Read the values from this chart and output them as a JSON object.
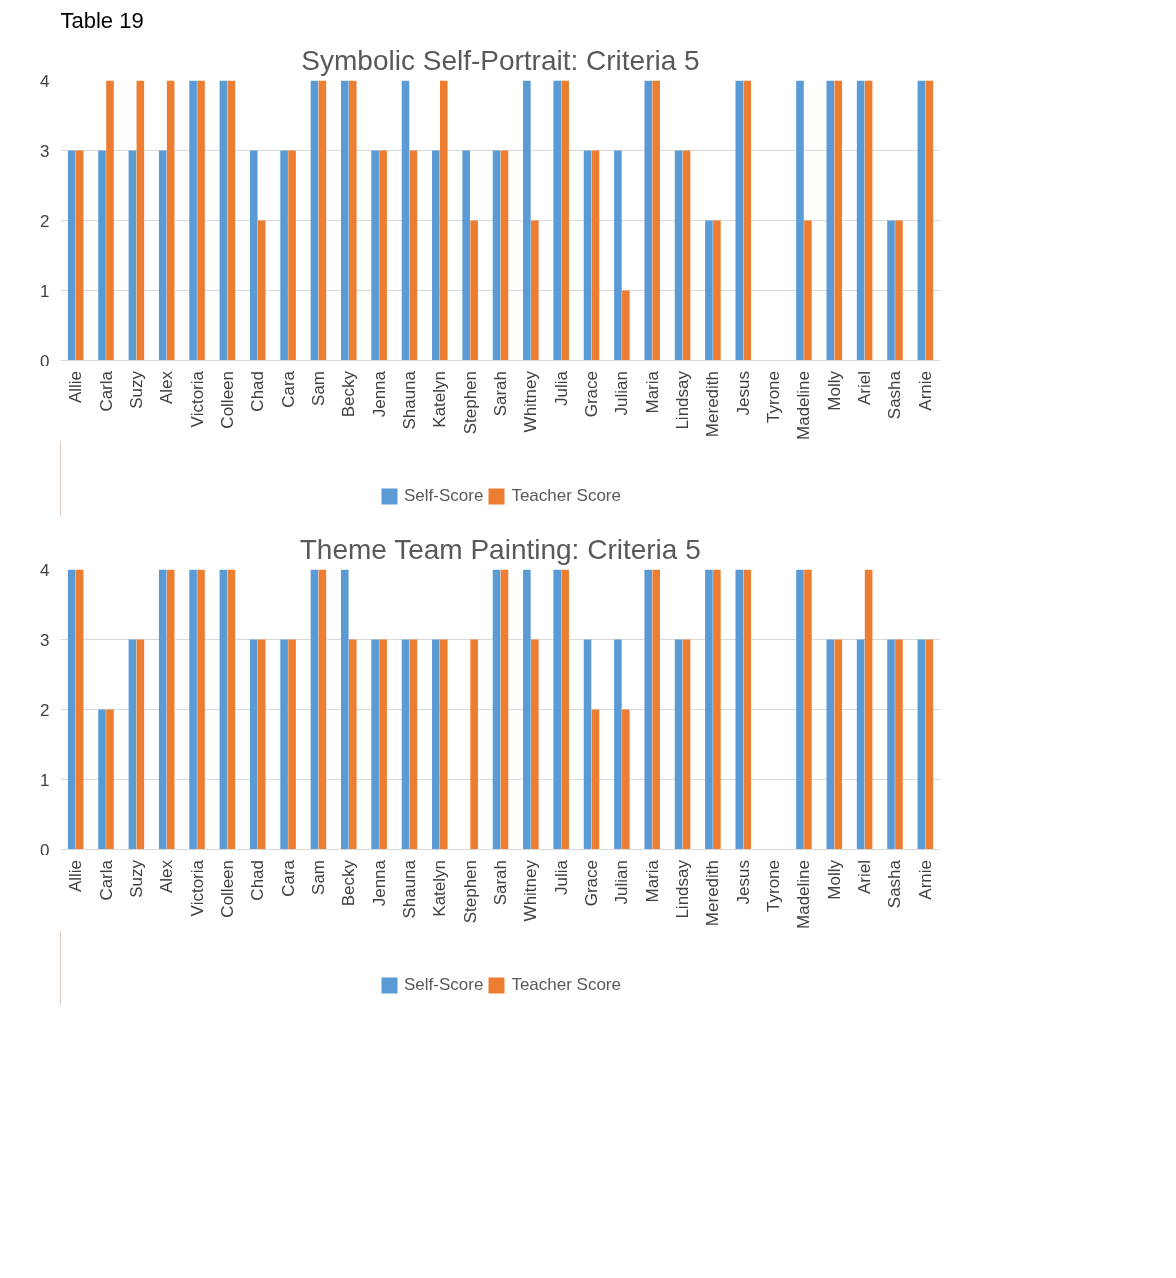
{
  "chart_data": [
    {
      "type": "bar",
      "title": "Symbolic Self-Portrait: Criteria 5",
      "annotations": [
        "Table 19"
      ],
      "categories": [
        "Allie",
        "Carla",
        "Suzy",
        "Alex",
        "Victoria",
        "Colleen",
        "Chad",
        "Cara",
        "Sam",
        "Becky",
        "Jenna",
        "Shauna",
        "Katelyn",
        "Stephen",
        "Sarah",
        "Whitney",
        "Julia",
        "Grace",
        "Julian",
        "Maria",
        "Lindsay",
        "Meredith",
        "Jesus",
        "Tyrone",
        "Madeline",
        "Molly",
        "Ariel",
        "Sasha",
        "Arnie"
      ],
      "series": [
        {
          "name": "Self-Score",
          "color": "#5b9bd5",
          "values": [
            3,
            3,
            3,
            3,
            4,
            4,
            3,
            3,
            4,
            4,
            3,
            4,
            3,
            3,
            3,
            4,
            4,
            3,
            3,
            4,
            3,
            2,
            4,
            null,
            4,
            4,
            4,
            2,
            4
          ]
        },
        {
          "name": "Teacher Score",
          "color": "#ed7d31",
          "values": [
            3,
            4,
            4,
            4,
            4,
            4,
            2,
            3,
            4,
            4,
            3,
            3,
            4,
            2,
            3,
            2,
            4,
            3,
            1,
            4,
            3,
            2,
            4,
            null,
            2,
            4,
            4,
            2,
            4
          ]
        }
      ],
      "ylim": [
        0,
        4
      ],
      "yticks": [
        0,
        1,
        2,
        3,
        4
      ],
      "grid": "y",
      "legend": "bottom"
    },
    {
      "type": "bar",
      "title": "Theme Team Painting: Criteria 5",
      "categories": [
        "Allie",
        "Carla",
        "Suzy",
        "Alex",
        "Victoria",
        "Colleen",
        "Chad",
        "Cara",
        "Sam",
        "Becky",
        "Jenna",
        "Shauna",
        "Katelyn",
        "Stephen",
        "Sarah",
        "Whitney",
        "Julia",
        "Grace",
        "Julian",
        "Maria",
        "Lindsay",
        "Meredith",
        "Jesus",
        "Tyrone",
        "Madeline",
        "Molly",
        "Ariel",
        "Sasha",
        "Arnie"
      ],
      "series": [
        {
          "name": "Self-Score",
          "color": "#5b9bd5",
          "values": [
            4,
            2,
            3,
            4,
            4,
            4,
            3,
            3,
            4,
            4,
            3,
            3,
            3,
            null,
            4,
            4,
            4,
            3,
            3,
            4,
            3,
            4,
            4,
            null,
            4,
            3,
            3,
            3,
            3
          ]
        },
        {
          "name": "Teacher Score",
          "color": "#ed7d31",
          "values": [
            4,
            2,
            3,
            4,
            4,
            4,
            3,
            3,
            4,
            3,
            3,
            3,
            3,
            3,
            4,
            3,
            4,
            2,
            2,
            4,
            3,
            4,
            4,
            null,
            4,
            3,
            4,
            3,
            3
          ]
        }
      ],
      "ylim": [
        0,
        4
      ],
      "yticks": [
        0,
        1,
        2,
        3,
        4
      ],
      "grid": "y",
      "legend": "bottom"
    }
  ]
}
